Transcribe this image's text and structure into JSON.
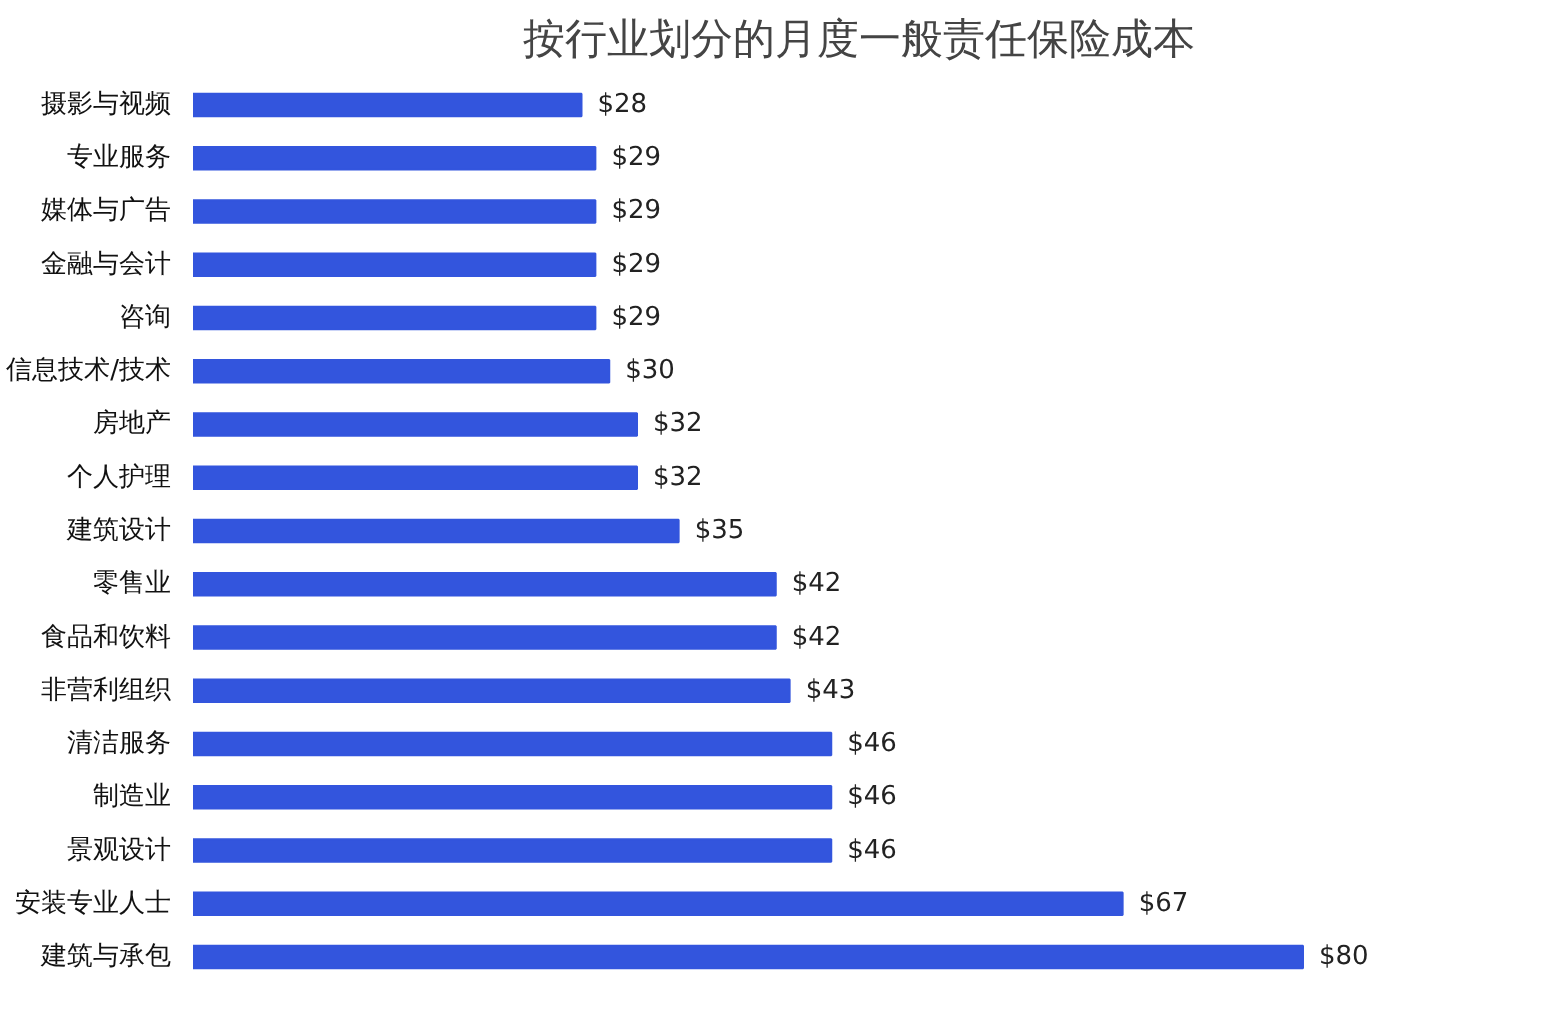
{
  "chart_data": {
    "type": "bar",
    "orientation": "horizontal",
    "title": "按行业划分的月度一般责任保险成本",
    "categories": [
      "摄影与视频",
      "专业服务",
      "媒体与广告",
      "金融与会计",
      "咨询",
      "信息技术/技术",
      "房地产",
      "个人护理",
      "建筑设计",
      "零售业",
      "食品和饮料",
      "非营利组织",
      "清洁服务",
      "制造业",
      "景观设计",
      "安装专业人士",
      "建筑与承包"
    ],
    "values": [
      28,
      29,
      29,
      29,
      29,
      30,
      32,
      32,
      35,
      42,
      42,
      43,
      46,
      46,
      46,
      67,
      80
    ],
    "value_labels": [
      "$28",
      "$29",
      "$29",
      "$29",
      "$29",
      "$30",
      "$32",
      "$32",
      "$35",
      "$42",
      "$42",
      "$43",
      "$46",
      "$46",
      "$46",
      "$67",
      "$80"
    ],
    "color": "#3355dd"
  }
}
